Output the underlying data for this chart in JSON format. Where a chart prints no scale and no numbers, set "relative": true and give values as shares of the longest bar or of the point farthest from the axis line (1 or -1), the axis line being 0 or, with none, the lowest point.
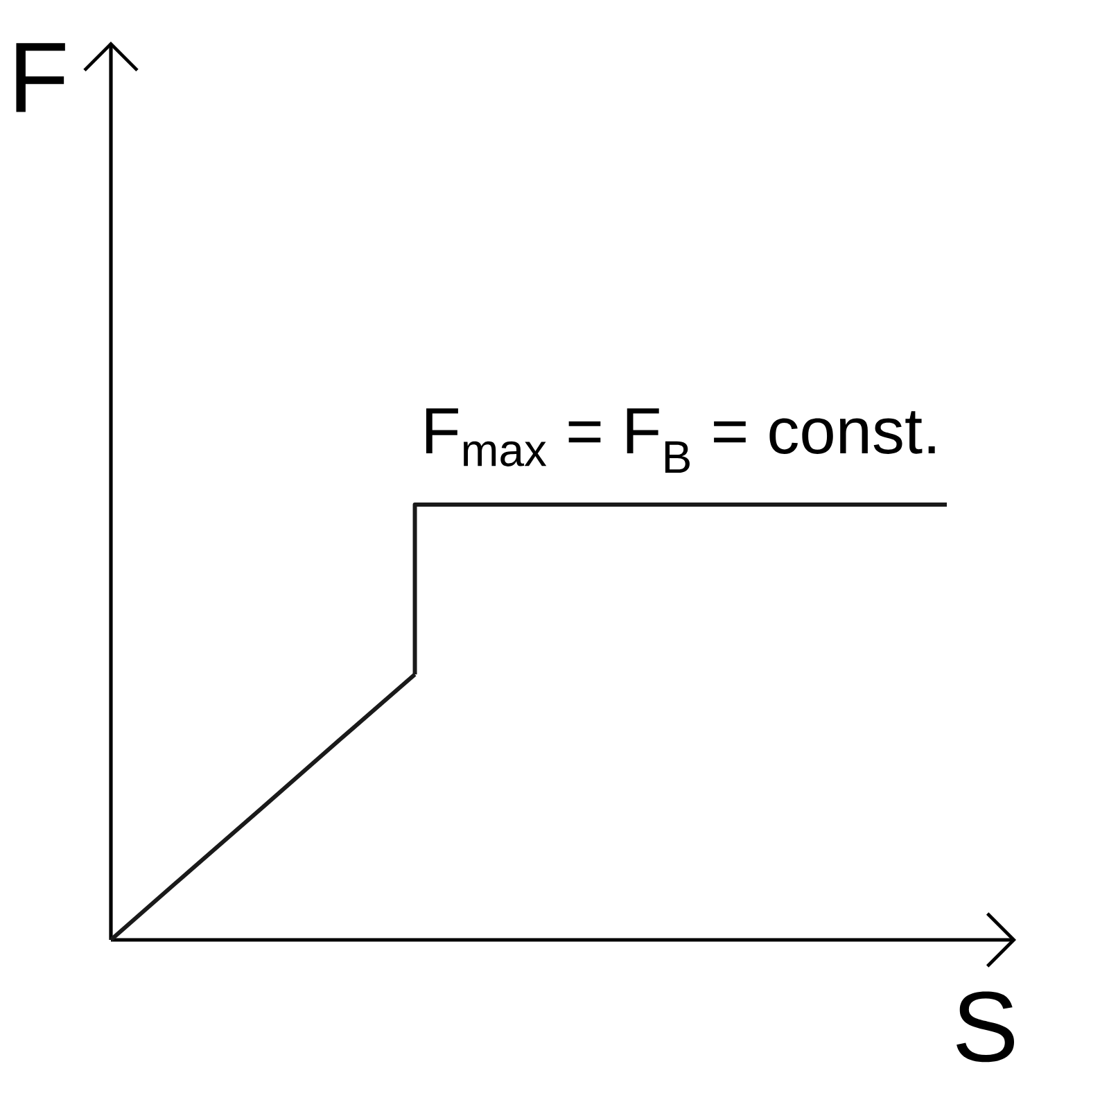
{
  "chart_data": {
    "type": "line",
    "relative": true,
    "xlabel": "S",
    "ylabel": "F",
    "categories": [
      null,
      null,
      null,
      null,
      null,
      null,
      null,
      null,
      null,
      null,
      null,
      null
    ],
    "series": [
      {
        "color": "#1a1a1a",
        "values": [
          0,
          0.153,
          0.305,
          0.458,
          0.61,
          null,
          null,
          null,
          null,
          null,
          null,
          null
        ]
      },
      {
        "type": "step",
        "color": "#1a1a1a",
        "values": [
          null,
          null,
          null,
          null,
          0.61,
          1.0,
          1.0,
          1.0,
          1.0,
          1.0,
          1.0,
          1.0
        ]
      }
    ],
    "line_style": "solid",
    "annotations": [
      {
        "text": "F$_{max}$ = F$_{B}$ = const.",
        "y": 1.0
      }
    ]
  }
}
